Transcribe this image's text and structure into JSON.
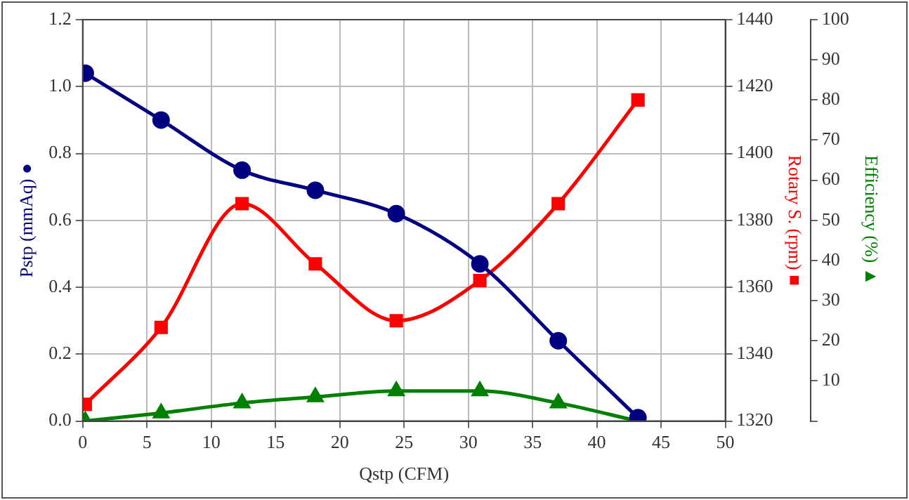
{
  "chart_data": {
    "type": "line",
    "x": [
      0.2,
      6.1,
      12.4,
      18.1,
      24.4,
      30.9,
      37.0,
      43.2
    ],
    "xlabel": "Qstp (CFM)",
    "ylabel": "Pstp (mmAq) ●",
    "y2label": "Rotary S. (rpm) ■",
    "y3label": "Efficiency (%) ▲",
    "xlim": [
      0,
      50
    ],
    "xticks": [
      0,
      5,
      10,
      15,
      20,
      25,
      30,
      35,
      40,
      45,
      50
    ],
    "ylim": [
      0,
      1.2
    ],
    "yticks": [
      {
        "value": 0,
        "label": "0.0"
      },
      0.2,
      0.4,
      0.6,
      0.8,
      {
        "value": 1,
        "label": "1.0"
      },
      1.2
    ],
    "y2lim": [
      1320,
      1440
    ],
    "y2ticks": [
      1320,
      1340,
      1360,
      1380,
      1400,
      1420,
      1440
    ],
    "y3lim": [
      0,
      100
    ],
    "y3ticks": [
      {
        "value": 0,
        "label": null
      },
      10,
      20,
      30,
      40,
      50,
      60,
      70,
      80,
      90,
      100
    ],
    "grid": true,
    "legend": false,
    "series": [
      {
        "color": "#000080",
        "marker": "circle",
        "values": [
          1.04,
          0.9,
          0.75,
          0.69,
          0.62,
          0.47,
          0.24,
          0.01
        ]
      },
      {
        "color": "#ff0000",
        "marker": "square",
        "axis": "y2",
        "values": [
          1325,
          1348,
          1385,
          1367,
          1350,
          1362,
          1385,
          1416
        ]
      },
      {
        "color": "#008000",
        "marker": "triangle",
        "axis": "y3",
        "values": [
          0,
          2,
          4.5,
          6,
          7.5,
          7.5,
          4.5,
          0
        ]
      }
    ]
  }
}
